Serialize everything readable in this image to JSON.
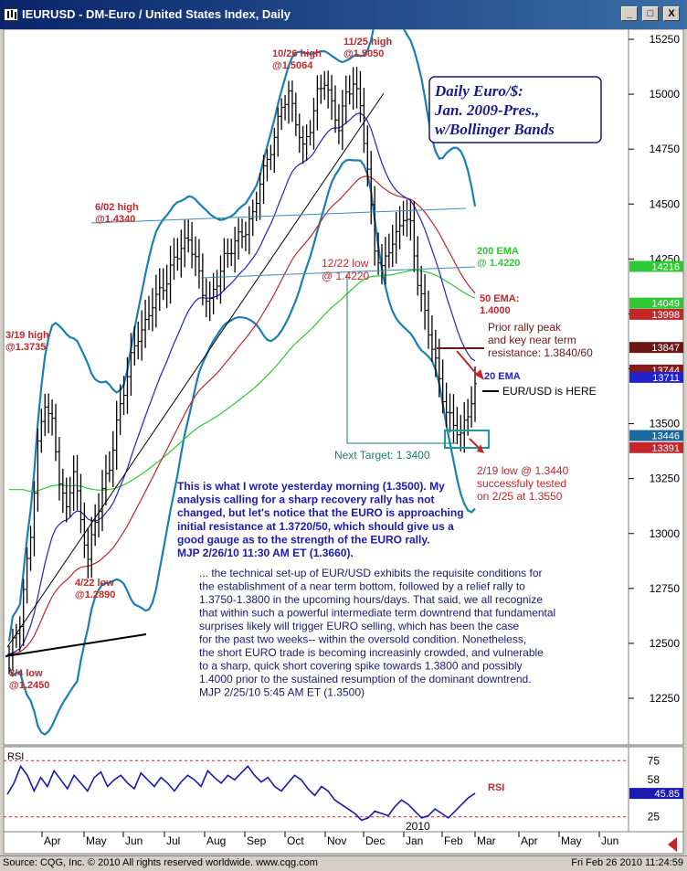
{
  "window": {
    "title": "IEURUSD - DM-Euro / United States Index, Daily",
    "buttons": [
      "_",
      "□",
      "X"
    ]
  },
  "chart_data": {
    "type": "candlestick",
    "title": "Daily Euro/$: Jan. 2009-Pres., w/Bollinger Bands",
    "title_lines": [
      "Daily Euro/$:",
      "Jan. 2009-Pres.,",
      "w/Bollinger Bands"
    ],
    "price_axis": {
      "ticks": [
        "15250",
        "15000",
        "14750",
        "14500",
        "14250",
        "14000",
        "13750",
        "13500",
        "13250",
        "13000",
        "12750",
        "12500",
        "12250"
      ],
      "ylim": [
        12100,
        15310
      ]
    },
    "price_markers": [
      {
        "label": "14216",
        "value": 14216,
        "color": "#2eca33"
      },
      {
        "label": "14049",
        "value": 14049,
        "color": "#2eca33"
      },
      {
        "label": "13998",
        "value": 13998,
        "color": "#c4262a"
      },
      {
        "label": "13847",
        "value": 13847,
        "color": "#6e1616"
      },
      {
        "label": "13744",
        "value": 13744,
        "color": "#8a1a1a"
      },
      {
        "label": "13711",
        "value": 13711,
        "color": "#2222cc"
      },
      {
        "label": "13446",
        "value": 13446,
        "color": "#1a6aa0"
      },
      {
        "label": "13391",
        "value": 13391,
        "color": "#c4262a"
      }
    ],
    "x_axis": {
      "months": [
        "Apr",
        "May",
        "Jun",
        "Jul",
        "Aug",
        "Sep",
        "Oct",
        "Nov",
        "Dec",
        "Jan",
        "Feb",
        "Mar",
        "Apr",
        "May",
        "Jun"
      ],
      "year_label": "2010"
    },
    "series": [
      {
        "name": "20 EMA",
        "color": "#2222cc"
      },
      {
        "name": "50 EMA",
        "color": "#c4262a"
      },
      {
        "name": "200 EMA",
        "color": "#2eca33"
      },
      {
        "name": "Bollinger Bands",
        "color": "#1a7fb5"
      }
    ],
    "price_path": [
      [
        0,
        12450
      ],
      [
        3,
        12600
      ],
      [
        6,
        13000
      ],
      [
        8,
        13400
      ],
      [
        10,
        13600
      ],
      [
        12,
        13500
      ],
      [
        14,
        13250
      ],
      [
        16,
        13100
      ],
      [
        18,
        13300
      ],
      [
        20,
        13050
      ],
      [
        22,
        12890
      ],
      [
        24,
        13050
      ],
      [
        26,
        13200
      ],
      [
        28,
        13300
      ],
      [
        30,
        13500
      ],
      [
        32,
        13650
      ],
      [
        34,
        13800
      ],
      [
        36,
        13900
      ],
      [
        38,
        13950
      ],
      [
        40,
        14050
      ],
      [
        42,
        14100
      ],
      [
        44,
        14150
      ],
      [
        46,
        14250
      ],
      [
        48,
        14300
      ],
      [
        50,
        14340
      ],
      [
        52,
        14250
      ],
      [
        54,
        14100
      ],
      [
        56,
        14050
      ],
      [
        58,
        14150
      ],
      [
        60,
        14250
      ],
      [
        62,
        14300
      ],
      [
        64,
        14350
      ],
      [
        66,
        14380
      ],
      [
        68,
        14450
      ],
      [
        70,
        14600
      ],
      [
        72,
        14700
      ],
      [
        74,
        14800
      ],
      [
        76,
        14950
      ],
      [
        78,
        15000
      ],
      [
        80,
        14880
      ],
      [
        82,
        14750
      ],
      [
        84,
        14850
      ],
      [
        86,
        15000
      ],
      [
        88,
        15064
      ],
      [
        90,
        14950
      ],
      [
        92,
        14850
      ],
      [
        94,
        15000
      ],
      [
        96,
        15050
      ],
      [
        98,
        14950
      ],
      [
        100,
        14650
      ],
      [
        102,
        14300
      ],
      [
        104,
        14200
      ],
      [
        106,
        14300
      ],
      [
        108,
        14350
      ],
      [
        110,
        14450
      ],
      [
        112,
        14400
      ],
      [
        114,
        14150
      ],
      [
        116,
        14000
      ],
      [
        118,
        13850
      ],
      [
        120,
        13700
      ],
      [
        122,
        13550
      ],
      [
        124,
        13500
      ],
      [
        126,
        13444
      ],
      [
        128,
        13550
      ],
      [
        130,
        13660
      ]
    ],
    "annotations": [
      {
        "id": "3_4_low",
        "lines": [
          "3/4 low",
          "@1.2450"
        ],
        "color": "#c4262a"
      },
      {
        "id": "4_22_low",
        "lines": [
          "4/22 low",
          "@1.2890"
        ],
        "color": "#c4262a"
      },
      {
        "id": "3_19_high",
        "lines": [
          "3/19 high",
          "@1.3735"
        ],
        "color": "#c4262a"
      },
      {
        "id": "6_02_high",
        "lines": [
          "6/02 high",
          "@1.4340"
        ],
        "color": "#c4262a"
      },
      {
        "id": "10_26_high",
        "lines": [
          "10/26 high",
          "@1.5064"
        ],
        "color": "#c4262a"
      },
      {
        "id": "11_25_high",
        "lines": [
          "11/25 high",
          "@1.5050"
        ],
        "color": "#c4262a"
      },
      {
        "id": "12_22_low",
        "lines": [
          "12/22 low",
          "@ 1.4220"
        ],
        "color": "#c4262a"
      },
      {
        "id": "ema200",
        "lines": [
          "200 EMA",
          "@ 1.4220"
        ],
        "color": "#2eca33"
      },
      {
        "id": "ema50",
        "lines": [
          "50 EMA:",
          "1.4000"
        ],
        "color": "#c4262a"
      },
      {
        "id": "prior_rally",
        "lines": [
          "Prior rally peak",
          "and key near term",
          "resistance: 1.3840/60"
        ],
        "color": "#6e1616"
      },
      {
        "id": "ema20",
        "lines": [
          "20 EMA"
        ],
        "color": "#2222cc"
      },
      {
        "id": "here",
        "lines": [
          "EUR/USD is HERE"
        ],
        "color": "#000000"
      },
      {
        "id": "next_target",
        "lines": [
          "Next Target: 1.3400"
        ],
        "color": "#1a7f70"
      },
      {
        "id": "low_2_19",
        "lines": [
          "2/19 low @ 1.3440",
          "successfuly tested",
          "on 2/25 at 1.3550"
        ],
        "color": "#c4262a"
      }
    ],
    "commentary_1": [
      "This is what I wrote yesterday morning (1.3500). My",
      "analysis calling for a sharp recovery rally has not",
      "changed, but let's notice that the EURO is approaching",
      "initial resistance at 1.3720/50, which should give us a",
      "good gauge as to the strength of the EURO rally.",
      "MJP 2/26/10  11:30 AM ET (1.3660)."
    ],
    "commentary_2": [
      "... the technical set-up of EUR/USD exhibits the requisite conditions for",
      "the establishment of a near term bottom, followed by a relief rally to",
      "1.3750-1.3800 in the upcoming hours/days. That said, we all recognize",
      "that within such a powerful intermediate term downtrend that fundamental",
      "surprises likely will trigger EURO selling, which has been the case",
      "for the past two weeks-- within the oversold condition.  Nonetheless,",
      "the short EURO trade is becoming increasinly crowded, and vulnerable",
      "to a sharp, quick short covering spike towards 1.3800 and possibly",
      "1.4000 prior to the sustained resumption of the dominant downtrend.",
      "MJP  2/25/10 5:45 AM ET (1.3500)"
    ],
    "rsi": {
      "label": "RSI",
      "series_label": "RSI",
      "ticks": [
        "75",
        "58",
        "25"
      ],
      "ylim": [
        15,
        85
      ],
      "current": "45.85",
      "values": [
        45,
        55,
        70,
        62,
        48,
        60,
        52,
        66,
        58,
        50,
        62,
        55,
        48,
        60,
        65,
        52,
        58,
        62,
        55,
        50,
        64,
        58,
        52,
        60,
        55,
        48,
        56,
        62,
        58,
        52,
        66,
        60,
        55,
        62,
        58,
        64,
        70,
        62,
        56,
        60,
        52,
        48,
        55,
        62,
        58,
        50,
        44,
        52,
        48,
        40,
        36,
        32,
        28,
        22,
        24,
        30,
        28,
        26,
        34,
        40,
        36,
        30,
        24,
        26,
        32,
        28,
        24,
        30,
        36,
        42,
        45.85
      ]
    }
  },
  "footer": {
    "source": "Source: CQG, Inc. © 2010 All rights reserved worldwide. www.cqg.com",
    "timestamp": "Fri Feb 26 2010 11:24:59"
  }
}
